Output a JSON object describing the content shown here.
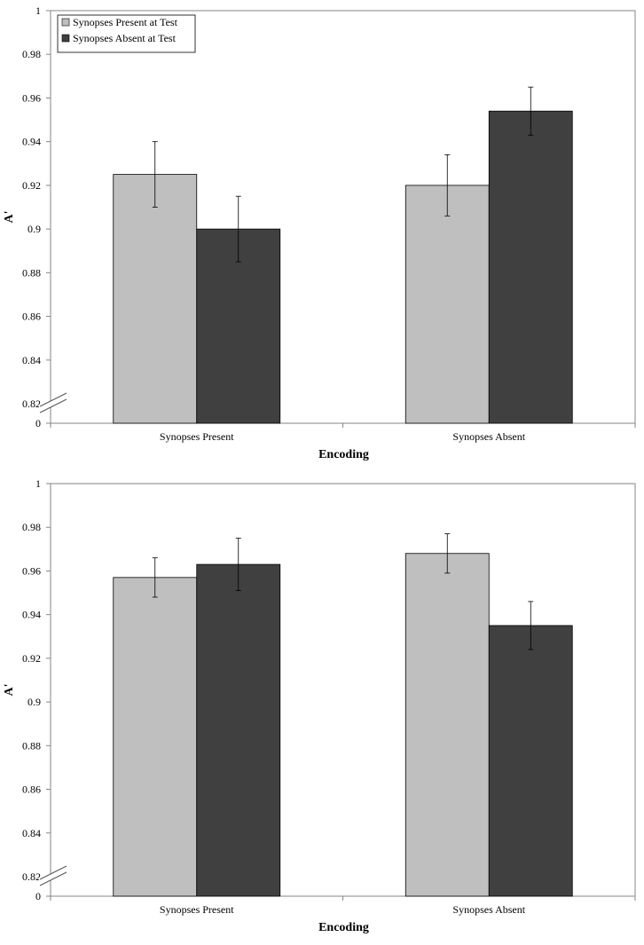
{
  "chart_data": [
    {
      "type": "bar",
      "categories": [
        "Synopses Present",
        "Synopses Absent"
      ],
      "series": [
        {
          "name": "Synopses Present at Test",
          "values": [
            0.925,
            0.92
          ],
          "errors": [
            0.015,
            0.014
          ],
          "color": "#bfbfbf"
        },
        {
          "name": "Synopses Absent at Test",
          "values": [
            0.9,
            0.954
          ],
          "errors": [
            0.015,
            0.011
          ],
          "color": "#404040"
        }
      ],
      "xlabel": "Encoding",
      "ylabel": "A'",
      "ylim": [
        0.8,
        1.0
      ],
      "yticks": [
        "0",
        "0.82",
        "0.84",
        "0.86",
        "0.88",
        "0.9",
        "0.92",
        "0.94",
        "0.96",
        "0.98",
        "1"
      ],
      "axis_break": true,
      "legend": "top-left",
      "grid": false
    },
    {
      "type": "bar",
      "categories": [
        "Synopses Present",
        "Synopses Absent"
      ],
      "series": [
        {
          "values": [
            0.957,
            0.968
          ],
          "errors": [
            0.009,
            0.009
          ],
          "color": "#bfbfbf"
        },
        {
          "values": [
            0.963,
            0.935
          ],
          "errors": [
            0.012,
            0.011
          ],
          "color": "#404040"
        }
      ],
      "xlabel": "Encoding",
      "ylabel": "A'",
      "ylim": [
        0.8,
        1.0
      ],
      "yticks": [
        "0",
        "0.82",
        "0.84",
        "0.86",
        "0.88",
        "0.9",
        "0.92",
        "0.94",
        "0.96",
        "0.98",
        "1"
      ],
      "axis_break": true,
      "grid": false
    }
  ]
}
